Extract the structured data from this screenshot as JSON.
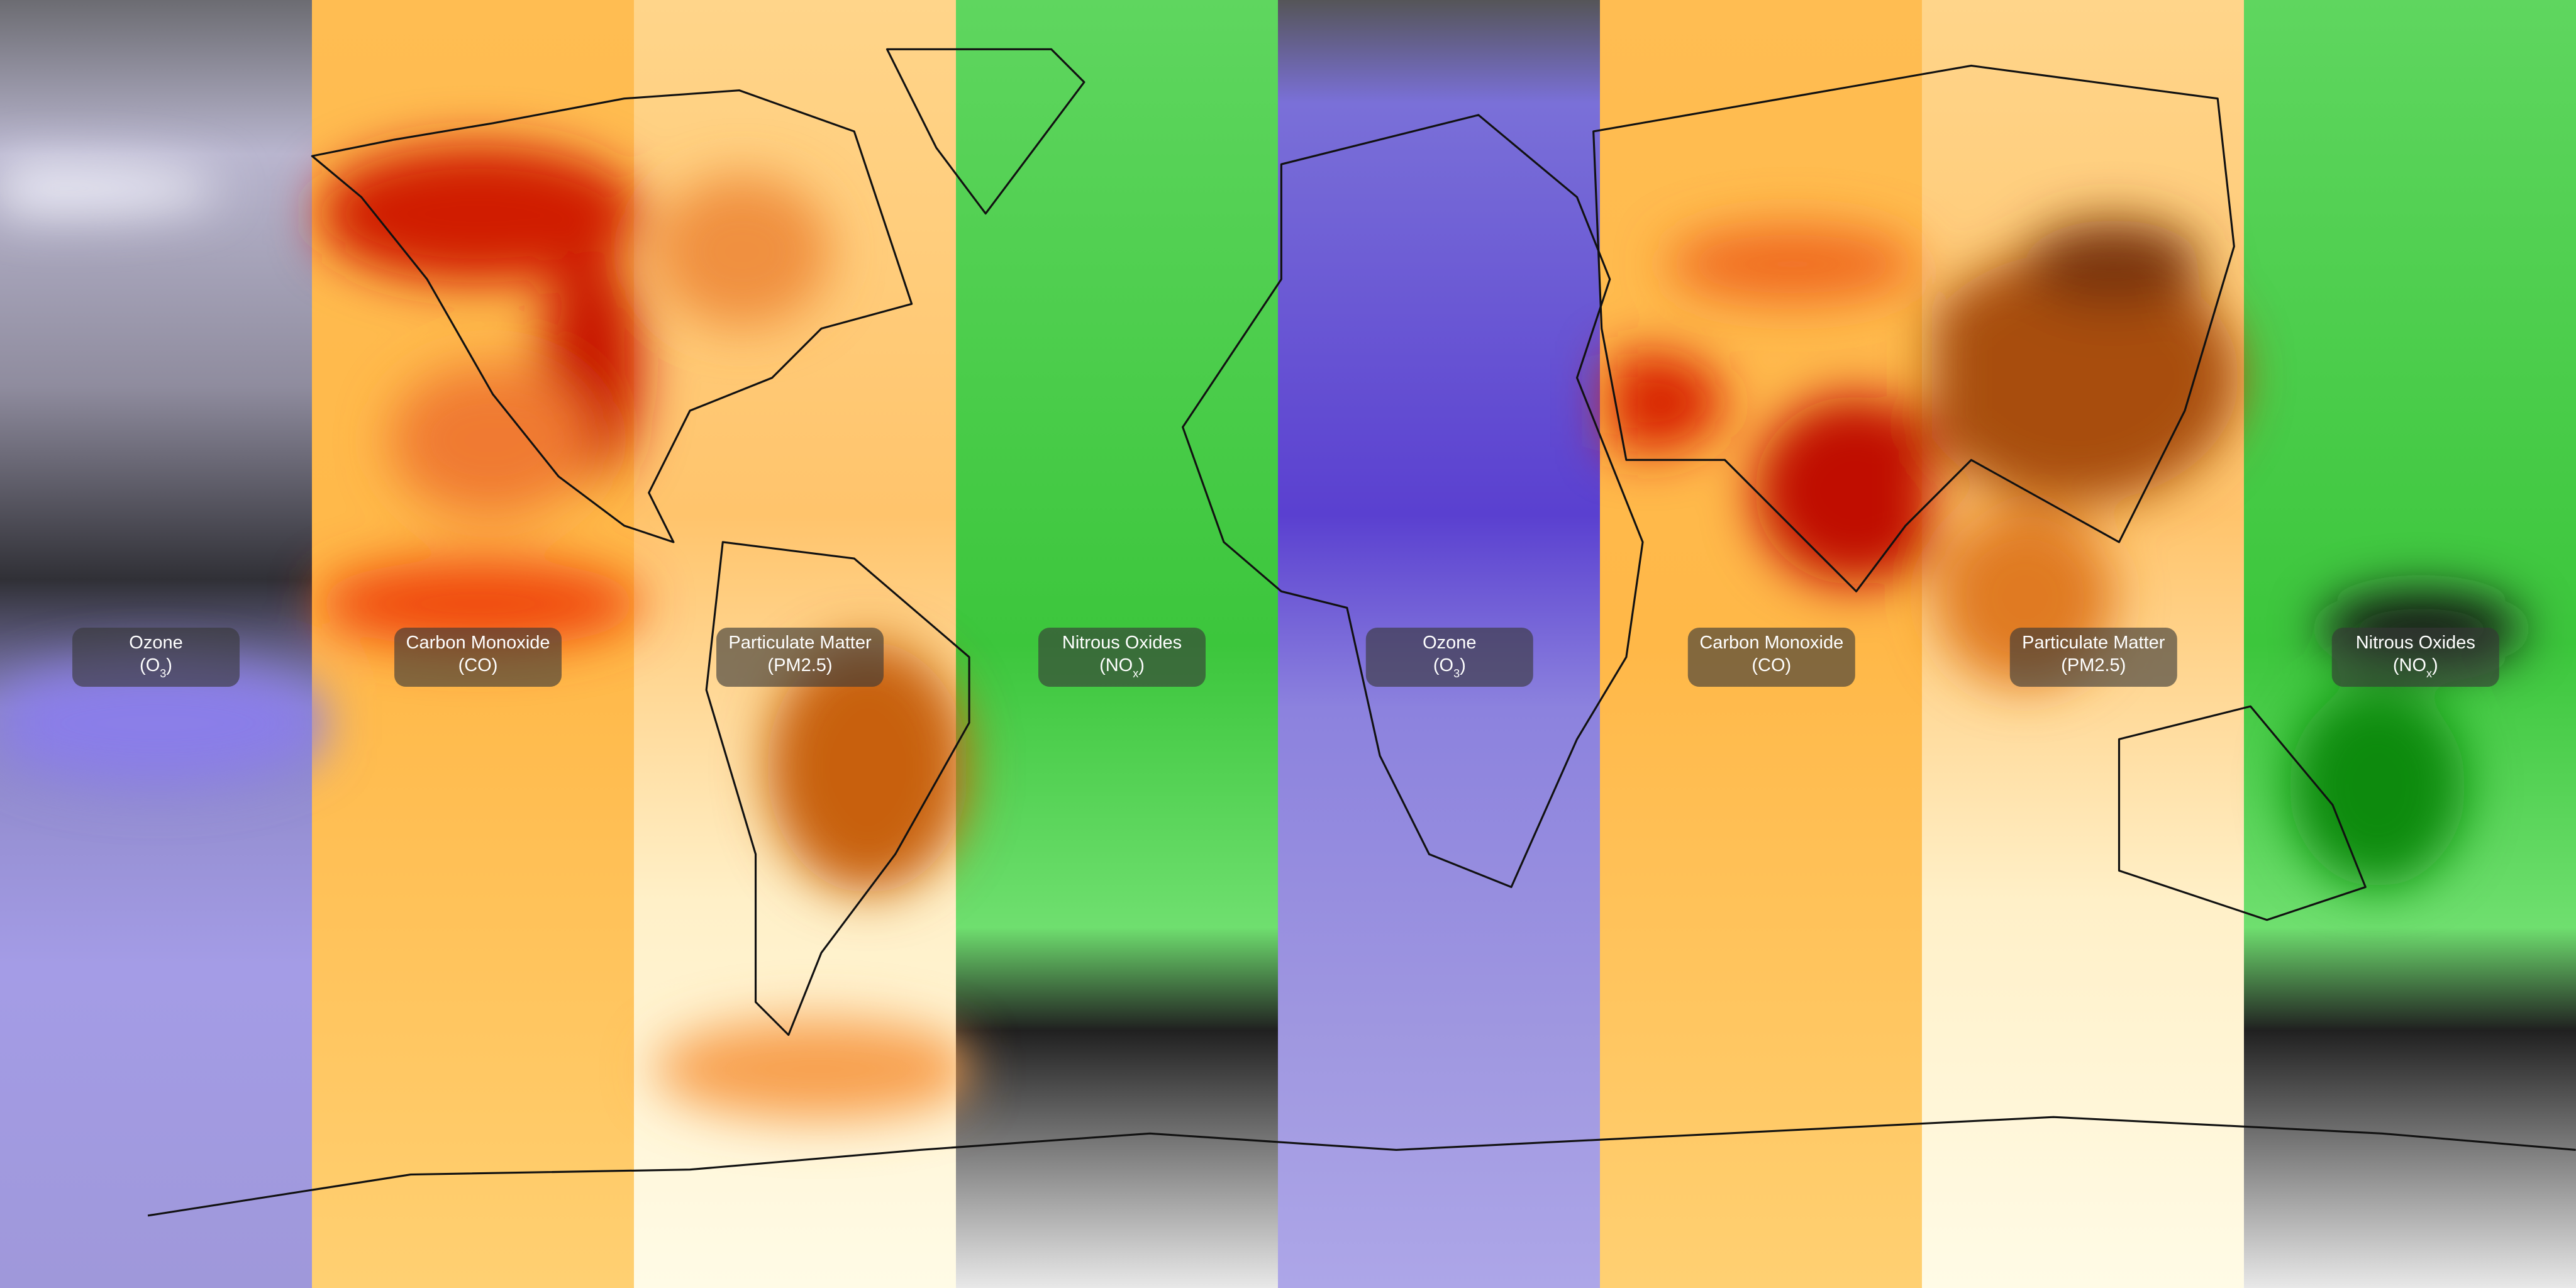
{
  "labels": [
    {
      "name": "Ozone",
      "formula": "(O",
      "subscript": "3",
      "close": ")"
    },
    {
      "name": "Carbon Monoxide",
      "formula": "(CO)"
    },
    {
      "name": "Particulate Matter",
      "formula": "(PM2.5)"
    },
    {
      "name": "Nitrous Oxides",
      "formula": "(NO",
      "subscript": "x",
      "close": ")"
    },
    {
      "name": "Ozone",
      "formula": "(O",
      "subscript": "3",
      "close": ")"
    },
    {
      "name": "Carbon Monoxide",
      "formula": "(CO)"
    },
    {
      "name": "Particulate Matter",
      "formula": "(PM2.5)"
    },
    {
      "name": "Nitrous Oxides",
      "formula": "(NO",
      "subscript": "x",
      "close": ")"
    }
  ]
}
